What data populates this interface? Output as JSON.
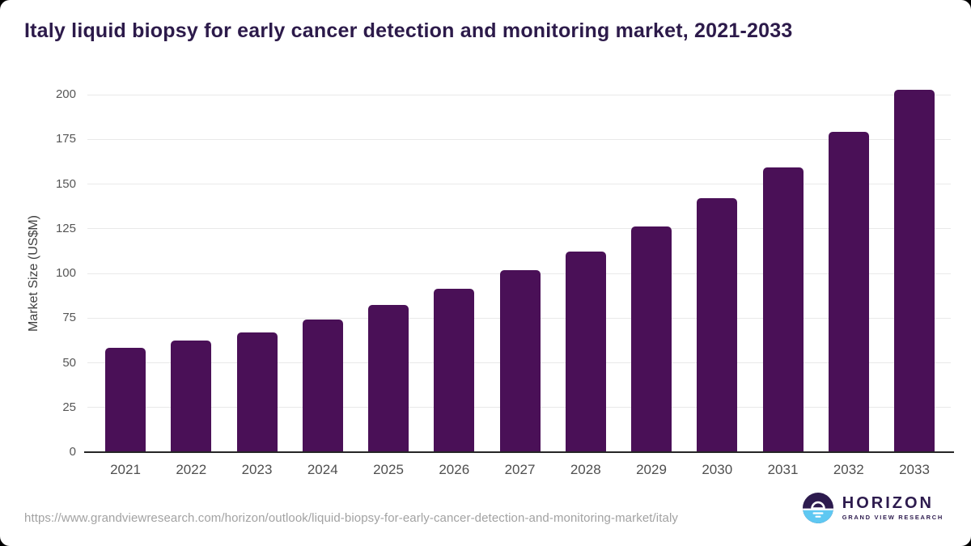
{
  "chart_data": {
    "type": "bar",
    "title": "Italy liquid biopsy for early cancer detection and monitoring market, 2021-2033",
    "xlabel": "",
    "ylabel": "Market Size (US$M)",
    "ylim": [
      0,
      200
    ],
    "ytick_step": 25,
    "ytick_labels": [
      "0",
      "25",
      "50",
      "75",
      "100",
      "125",
      "150",
      "175",
      "200"
    ],
    "grid": true,
    "legend": "none",
    "categories": [
      "2021",
      "2022",
      "2023",
      "2024",
      "2025",
      "2026",
      "2027",
      "2028",
      "2029",
      "2030",
      "2031",
      "2032",
      "2033"
    ],
    "values": [
      58.2,
      62.6,
      67.2,
      74.4,
      82.4,
      91.6,
      101.9,
      112.4,
      126.4,
      142.0,
      159.2,
      179.0,
      202.5
    ],
    "series_name": "Market Size (US$M)"
  },
  "footer": {
    "source_url": "https://www.grandviewresearch.com/horizon/outlook/liquid-biopsy-for-early-cancer-detection-and-monitoring-market/italy",
    "logo": {
      "brand": "HORIZON",
      "sub_brand": "GRAND VIEW RESEARCH",
      "icon": "horizon-sunrise-circle-icon"
    }
  },
  "colors": {
    "bar": "#4a1057",
    "title_text": "#2c1a4a",
    "gridline": "#e9e9e9",
    "baseline": "#262626",
    "axis_tick_text": "#565656",
    "url_text": "#a2a2a2",
    "logo_purple": "#2d1b4e",
    "logo_blue": "#5fc8f2"
  }
}
